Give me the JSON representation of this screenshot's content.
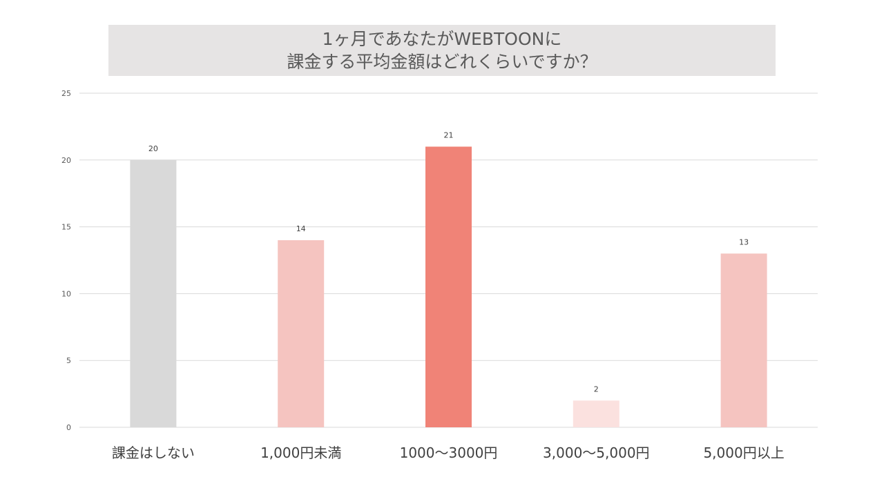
{
  "chart_data": {
    "type": "bar",
    "title_lines": [
      "1ヶ月であなたがWEBTOONに",
      "課金する平均金額はどれくらいですか？"
    ],
    "categories": [
      "課金はしない",
      "1,000円未満",
      "1000〜3000円",
      "3,000〜5,000円",
      "5,000円以上"
    ],
    "values": [
      20,
      14,
      21,
      2,
      13
    ],
    "bar_colors": [
      "#d9d9d9",
      "#f5c4c0",
      "#f08377",
      "#fbe1df",
      "#f5c4c0"
    ],
    "ylim": [
      0,
      25
    ],
    "yticks": [
      0,
      5,
      10,
      15,
      20,
      25
    ],
    "grid": true,
    "legend": "none",
    "xlabel": "",
    "ylabel": ""
  },
  "colors": {
    "title_bg": "#e6e4e4",
    "gridline": "#d9d9d9",
    "text": "#595959"
  }
}
